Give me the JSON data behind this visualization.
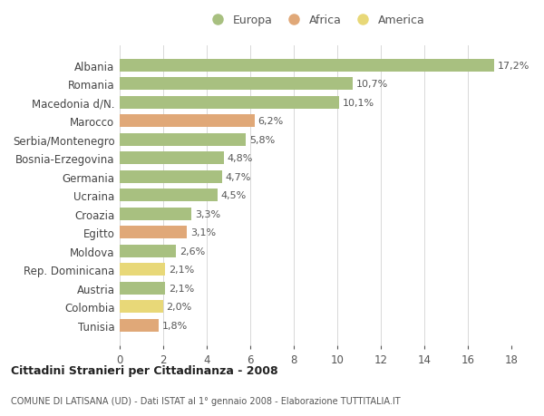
{
  "countries": [
    "Albania",
    "Romania",
    "Macedonia d/N.",
    "Marocco",
    "Serbia/Montenegro",
    "Bosnia-Erzegovina",
    "Germania",
    "Ucraina",
    "Croazia",
    "Egitto",
    "Moldova",
    "Rep. Dominicana",
    "Austria",
    "Colombia",
    "Tunisia"
  ],
  "values": [
    17.2,
    10.7,
    10.1,
    6.2,
    5.8,
    4.8,
    4.7,
    4.5,
    3.3,
    3.1,
    2.6,
    2.1,
    2.1,
    2.0,
    1.8
  ],
  "categories": [
    "Europa",
    "Africa",
    "America"
  ],
  "continent": [
    "Europa",
    "Europa",
    "Europa",
    "Africa",
    "Europa",
    "Europa",
    "Europa",
    "Europa",
    "Europa",
    "Africa",
    "Europa",
    "America",
    "Europa",
    "America",
    "Africa"
  ],
  "colors": {
    "Europa": "#a8c080",
    "Africa": "#e0a878",
    "America": "#e8d878"
  },
  "title_main": "Cittadini Stranieri per Cittadinanza - 2008",
  "title_sub": "COMUNE DI LATISANA (UD) - Dati ISTAT al 1° gennaio 2008 - Elaborazione TUTTITALIA.IT",
  "xlim": [
    0,
    18
  ],
  "xticks": [
    0,
    2,
    4,
    6,
    8,
    10,
    12,
    14,
    16,
    18
  ],
  "bg_color": "#ffffff",
  "grid_color": "#d8d8d8",
  "bar_height": 0.68
}
